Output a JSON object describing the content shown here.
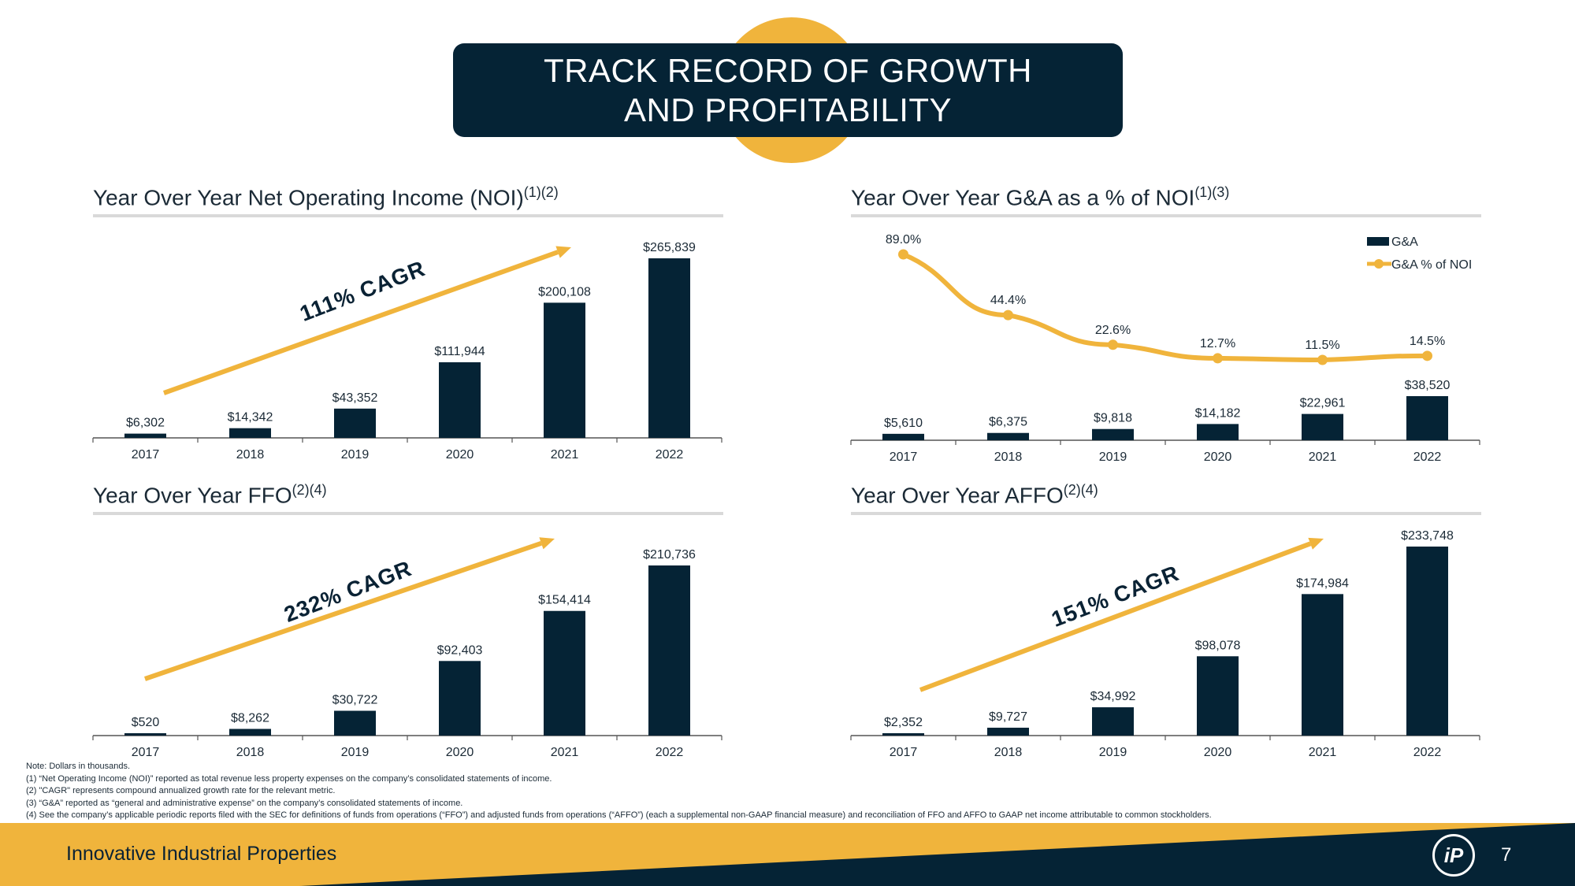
{
  "slide": {
    "title_line1": "TRACK RECORD OF GROWTH",
    "title_line2": "AND PROFITABILITY",
    "footer_company": "Innovative Industrial Properties",
    "logo_text": "iP",
    "page_number": "7"
  },
  "notes": [
    "Note: Dollars in thousands.",
    "(1)   “Net Operating Income (NOI)” reported as total revenue less property expenses on the company’s consolidated statements of income.",
    "(2)   \"CAGR\" represents compound annualized growth rate for the relevant metric.",
    "(3)   “G&A” reported as “general and administrative expense” on the company’s consolidated statements of income.",
    "(4)   See the company’s applicable periodic reports filed with the SEC for definitions of funds from operations (“FFO”) and adjusted funds from operations (“AFFO”) (each a supplemental non-GAAP financial measure) and reconciliation of FFO and AFFO to GAAP net income attributable to common stockholders."
  ],
  "colors": {
    "navy": "#052335",
    "gold": "#f0b43c",
    "rule": "#d9d9d9"
  },
  "chart_data": [
    {
      "id": "noi",
      "type": "bar",
      "title": "Year Over Year Net Operating Income (NOI)",
      "title_sup": "(1)(2)",
      "categories": [
        "2017",
        "2018",
        "2019",
        "2020",
        "2021",
        "2022"
      ],
      "values": [
        6302,
        14342,
        43352,
        111944,
        200108,
        265839
      ],
      "labels": [
        "$6,302",
        "$14,342",
        "$43,352",
        "$111,944",
        "$200,108",
        "$265,839"
      ],
      "annotation": "111% CAGR"
    },
    {
      "id": "ga",
      "type": "bar",
      "title": "Year Over Year G&A as a % of NOI",
      "title_sup": "(1)(3)",
      "categories": [
        "2017",
        "2018",
        "2019",
        "2020",
        "2021",
        "2022"
      ],
      "series": [
        {
          "name": "G&A",
          "values": [
            5610,
            6375,
            9818,
            14182,
            22961,
            38520
          ],
          "labels": [
            "$5,610",
            "$6,375",
            "$9,818",
            "$14,182",
            "$22,961",
            "$38,520"
          ]
        },
        {
          "name": "G&A % of NOI",
          "values": [
            89.0,
            44.4,
            22.6,
            12.7,
            11.5,
            14.5
          ],
          "labels": [
            "89.0%",
            "44.4%",
            "22.6%",
            "12.7%",
            "11.5%",
            "14.5%"
          ]
        }
      ],
      "legend": "top-right"
    },
    {
      "id": "ffo",
      "type": "bar",
      "title": "Year Over Year FFO",
      "title_sup": "(2)(4)",
      "categories": [
        "2017",
        "2018",
        "2019",
        "2020",
        "2021",
        "2022"
      ],
      "values": [
        520,
        8262,
        30722,
        92403,
        154414,
        210736
      ],
      "labels": [
        "$520",
        "$8,262",
        "$30,722",
        "$92,403",
        "$154,414",
        "$210,736"
      ],
      "annotation": "232% CAGR"
    },
    {
      "id": "affo",
      "type": "bar",
      "title": "Year Over Year AFFO",
      "title_sup": "(2)(4)",
      "categories": [
        "2017",
        "2018",
        "2019",
        "2020",
        "2021",
        "2022"
      ],
      "values": [
        2352,
        9727,
        34992,
        98078,
        174984,
        233748
      ],
      "labels": [
        "$2,352",
        "$9,727",
        "$34,992",
        "$98,078",
        "$174,984",
        "$233,748"
      ],
      "annotation": "151% CAGR"
    }
  ]
}
